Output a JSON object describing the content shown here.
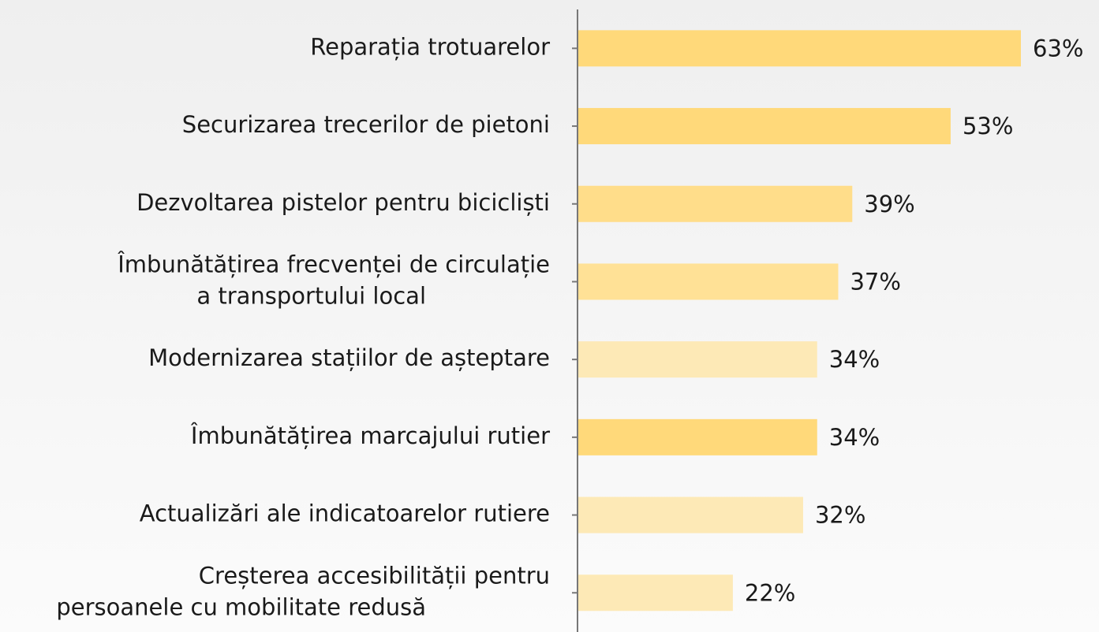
{
  "chart_data": {
    "type": "barh",
    "categories": [
      "Reparația trotuarelor",
      "Securizarea trecerilor de pietoni",
      "Dezvoltarea pistelor pentru bicicliști",
      "Îmbunătățirea frecvenței de circulație\na transportului local",
      "Modernizarea stațiilor de așteptare",
      "Îmbunătățirea marcajului rutier",
      "Actualizări ale indicatoarelor rutiere",
      "Creșterea accesibilității pentru\npersoanele cu mobilitate redusă"
    ],
    "values": [
      63,
      53,
      39,
      37,
      34,
      34,
      32,
      22
    ],
    "value_labels": [
      "63%",
      "53%",
      "39%",
      "37%",
      "34%",
      "34%",
      "32%",
      "22%"
    ],
    "colors": [
      "#ffd97a",
      "#ffd97a",
      "#ffdd8a",
      "#ffe196",
      "#fde9b6",
      "#ffd97a",
      "#fde9b6",
      "#fde9b6"
    ]
  }
}
